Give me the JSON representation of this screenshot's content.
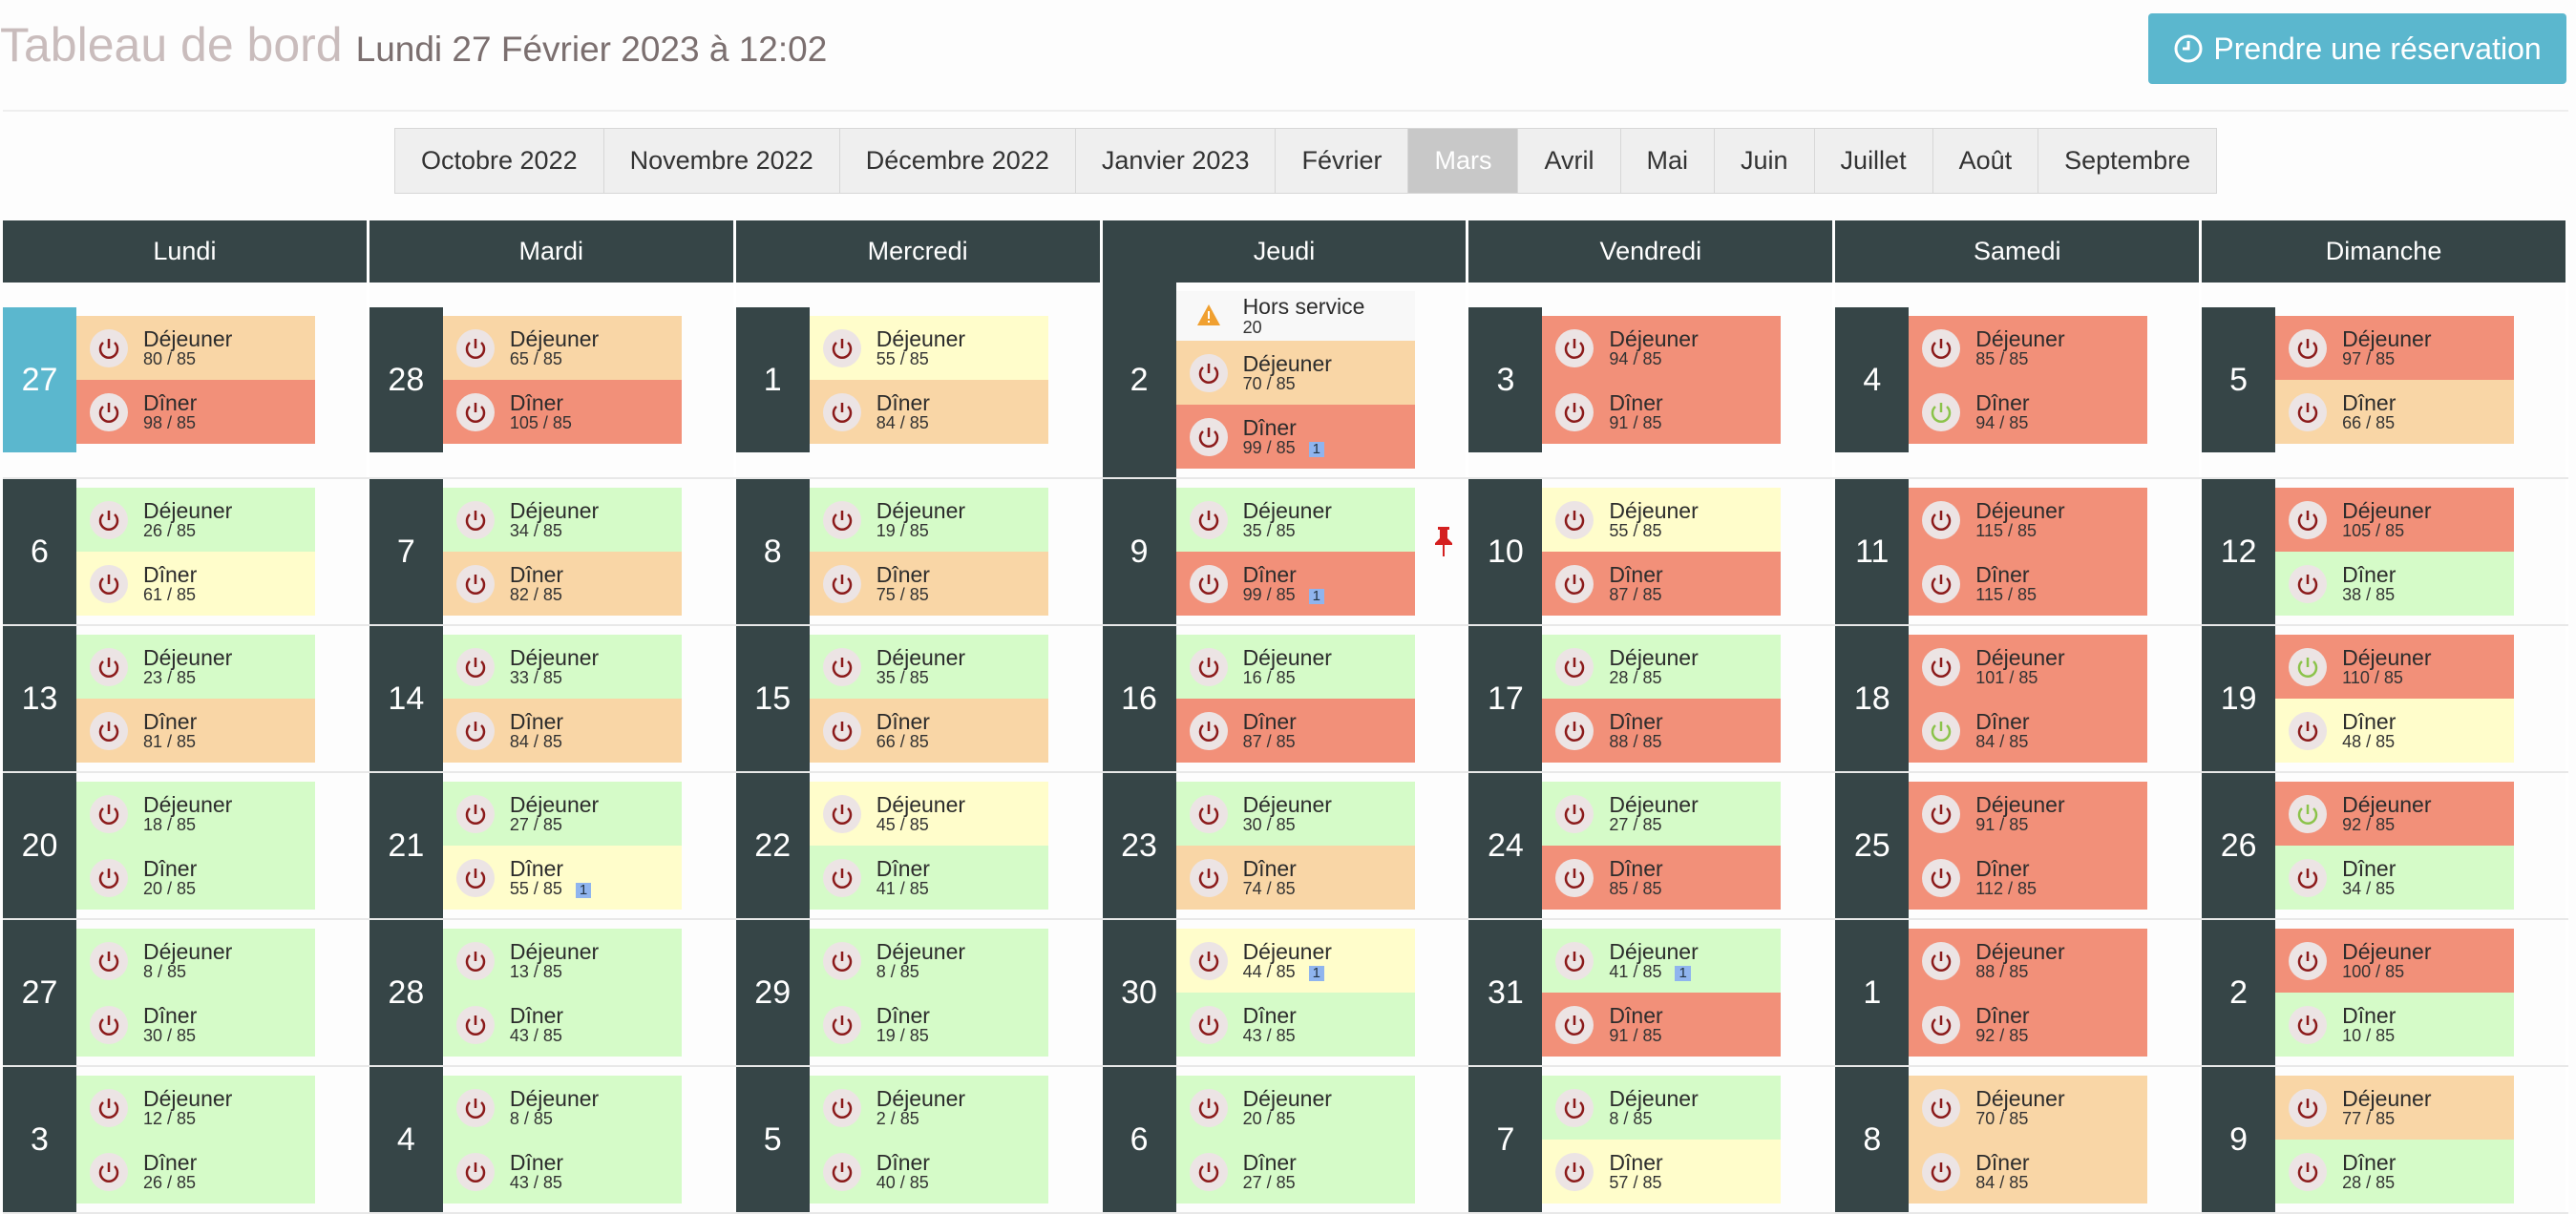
{
  "header": {
    "title": "Tableau de bord",
    "date": "Lundi 27 Février 2023 à 12:02",
    "button": "Prendre une réservation"
  },
  "months": [
    {
      "label": "Octobre 2022",
      "selected": false
    },
    {
      "label": "Novembre 2022",
      "selected": false
    },
    {
      "label": "Décembre 2022",
      "selected": false
    },
    {
      "label": "Janvier 2023",
      "selected": false
    },
    {
      "label": "Février",
      "selected": false
    },
    {
      "label": "Mars",
      "selected": true
    },
    {
      "label": "Avril",
      "selected": false
    },
    {
      "label": "Mai",
      "selected": false
    },
    {
      "label": "Juin",
      "selected": false
    },
    {
      "label": "Juillet",
      "selected": false
    },
    {
      "label": "Août",
      "selected": false
    },
    {
      "label": "Septembre",
      "selected": false
    }
  ],
  "weekdays": [
    "Lundi",
    "Mardi",
    "Mercredi",
    "Jeudi",
    "Vendredi",
    "Samedi",
    "Dimanche"
  ],
  "weeks": [
    [
      {
        "day": "27",
        "today": true,
        "meals": [
          {
            "name": "Déjeuner",
            "count": "80 / 85",
            "color": "orange"
          },
          {
            "name": "Dîner",
            "count": "98 / 85",
            "color": "red"
          }
        ]
      },
      {
        "day": "28",
        "meals": [
          {
            "name": "Déjeuner",
            "count": "65 / 85",
            "color": "orange"
          },
          {
            "name": "Dîner",
            "count": "105 / 85",
            "color": "red"
          }
        ]
      },
      {
        "day": "1",
        "meals": [
          {
            "name": "Déjeuner",
            "count": "55 / 85",
            "color": "yellow"
          },
          {
            "name": "Dîner",
            "count": "84 / 85",
            "color": "orange"
          }
        ]
      },
      {
        "day": "2",
        "meals": [
          {
            "name": "Hors service",
            "count": "20",
            "color": "white",
            "warning": true
          },
          {
            "name": "Déjeuner",
            "count": "70 / 85",
            "color": "orange"
          },
          {
            "name": "Dîner",
            "count": "99 / 85",
            "color": "red",
            "badge": "1"
          }
        ]
      },
      {
        "day": "3",
        "meals": [
          {
            "name": "Déjeuner",
            "count": "94 / 85",
            "color": "red"
          },
          {
            "name": "Dîner",
            "count": "91 / 85",
            "color": "red"
          }
        ]
      },
      {
        "day": "4",
        "meals": [
          {
            "name": "Déjeuner",
            "count": "85 / 85",
            "color": "red"
          },
          {
            "name": "Dîner",
            "count": "94 / 85",
            "color": "red",
            "icon": "green"
          }
        ]
      },
      {
        "day": "5",
        "meals": [
          {
            "name": "Déjeuner",
            "count": "97 / 85",
            "color": "red"
          },
          {
            "name": "Dîner",
            "count": "66 / 85",
            "color": "orange"
          }
        ]
      }
    ],
    [
      {
        "day": "6",
        "meals": [
          {
            "name": "Déjeuner",
            "count": "26 / 85",
            "color": "green"
          },
          {
            "name": "Dîner",
            "count": "61 / 85",
            "color": "yellow"
          }
        ]
      },
      {
        "day": "7",
        "meals": [
          {
            "name": "Déjeuner",
            "count": "34 / 85",
            "color": "green"
          },
          {
            "name": "Dîner",
            "count": "82 / 85",
            "color": "orange"
          }
        ]
      },
      {
        "day": "8",
        "meals": [
          {
            "name": "Déjeuner",
            "count": "19 / 85",
            "color": "green"
          },
          {
            "name": "Dîner",
            "count": "75 / 85",
            "color": "orange"
          }
        ]
      },
      {
        "day": "9",
        "pinned": true,
        "meals": [
          {
            "name": "Déjeuner",
            "count": "35 / 85",
            "color": "green"
          },
          {
            "name": "Dîner",
            "count": "99 / 85",
            "color": "red",
            "badge": "1"
          }
        ]
      },
      {
        "day": "10",
        "meals": [
          {
            "name": "Déjeuner",
            "count": "55 / 85",
            "color": "yellow"
          },
          {
            "name": "Dîner",
            "count": "87 / 85",
            "color": "red"
          }
        ]
      },
      {
        "day": "11",
        "meals": [
          {
            "name": "Déjeuner",
            "count": "115 / 85",
            "color": "red"
          },
          {
            "name": "Dîner",
            "count": "115 / 85",
            "color": "red"
          }
        ]
      },
      {
        "day": "12",
        "meals": [
          {
            "name": "Déjeuner",
            "count": "105 / 85",
            "color": "red"
          },
          {
            "name": "Dîner",
            "count": "38 / 85",
            "color": "green"
          }
        ]
      }
    ],
    [
      {
        "day": "13",
        "meals": [
          {
            "name": "Déjeuner",
            "count": "23 / 85",
            "color": "green"
          },
          {
            "name": "Dîner",
            "count": "81 / 85",
            "color": "orange"
          }
        ]
      },
      {
        "day": "14",
        "meals": [
          {
            "name": "Déjeuner",
            "count": "33 / 85",
            "color": "green"
          },
          {
            "name": "Dîner",
            "count": "84 / 85",
            "color": "orange"
          }
        ]
      },
      {
        "day": "15",
        "meals": [
          {
            "name": "Déjeuner",
            "count": "35 / 85",
            "color": "green"
          },
          {
            "name": "Dîner",
            "count": "66 / 85",
            "color": "orange"
          }
        ]
      },
      {
        "day": "16",
        "meals": [
          {
            "name": "Déjeuner",
            "count": "16 / 85",
            "color": "green"
          },
          {
            "name": "Dîner",
            "count": "87 / 85",
            "color": "red"
          }
        ]
      },
      {
        "day": "17",
        "meals": [
          {
            "name": "Déjeuner",
            "count": "28 / 85",
            "color": "green"
          },
          {
            "name": "Dîner",
            "count": "88 / 85",
            "color": "red"
          }
        ]
      },
      {
        "day": "18",
        "meals": [
          {
            "name": "Déjeuner",
            "count": "101 / 85",
            "color": "red"
          },
          {
            "name": "Dîner",
            "count": "84 / 85",
            "color": "red",
            "icon": "green"
          }
        ]
      },
      {
        "day": "19",
        "meals": [
          {
            "name": "Déjeuner",
            "count": "110 / 85",
            "color": "red",
            "icon": "green"
          },
          {
            "name": "Dîner",
            "count": "48 / 85",
            "color": "yellow"
          }
        ]
      }
    ],
    [
      {
        "day": "20",
        "meals": [
          {
            "name": "Déjeuner",
            "count": "18 / 85",
            "color": "green"
          },
          {
            "name": "Dîner",
            "count": "20 / 85",
            "color": "green"
          }
        ]
      },
      {
        "day": "21",
        "meals": [
          {
            "name": "Déjeuner",
            "count": "27 / 85",
            "color": "green"
          },
          {
            "name": "Dîner",
            "count": "55 / 85",
            "color": "yellow",
            "badge": "1"
          }
        ]
      },
      {
        "day": "22",
        "meals": [
          {
            "name": "Déjeuner",
            "count": "45 / 85",
            "color": "yellow"
          },
          {
            "name": "Dîner",
            "count": "41 / 85",
            "color": "green"
          }
        ]
      },
      {
        "day": "23",
        "meals": [
          {
            "name": "Déjeuner",
            "count": "30 / 85",
            "color": "green"
          },
          {
            "name": "Dîner",
            "count": "74 / 85",
            "color": "orange"
          }
        ]
      },
      {
        "day": "24",
        "meals": [
          {
            "name": "Déjeuner",
            "count": "27 / 85",
            "color": "green"
          },
          {
            "name": "Dîner",
            "count": "85 / 85",
            "color": "red"
          }
        ]
      },
      {
        "day": "25",
        "meals": [
          {
            "name": "Déjeuner",
            "count": "91 / 85",
            "color": "red"
          },
          {
            "name": "Dîner",
            "count": "112 / 85",
            "color": "red"
          }
        ]
      },
      {
        "day": "26",
        "meals": [
          {
            "name": "Déjeuner",
            "count": "92 / 85",
            "color": "red",
            "icon": "green"
          },
          {
            "name": "Dîner",
            "count": "34 / 85",
            "color": "green"
          }
        ]
      }
    ],
    [
      {
        "day": "27",
        "meals": [
          {
            "name": "Déjeuner",
            "count": "8 / 85",
            "color": "green"
          },
          {
            "name": "Dîner",
            "count": "30 / 85",
            "color": "green"
          }
        ]
      },
      {
        "day": "28",
        "meals": [
          {
            "name": "Déjeuner",
            "count": "13 / 85",
            "color": "green"
          },
          {
            "name": "Dîner",
            "count": "43 / 85",
            "color": "green"
          }
        ]
      },
      {
        "day": "29",
        "meals": [
          {
            "name": "Déjeuner",
            "count": "8 / 85",
            "color": "green"
          },
          {
            "name": "Dîner",
            "count": "19 / 85",
            "color": "green"
          }
        ]
      },
      {
        "day": "30",
        "meals": [
          {
            "name": "Déjeuner",
            "count": "44 / 85",
            "color": "yellow",
            "badge": "1"
          },
          {
            "name": "Dîner",
            "count": "43 / 85",
            "color": "green"
          }
        ]
      },
      {
        "day": "31",
        "meals": [
          {
            "name": "Déjeuner",
            "count": "41 / 85",
            "color": "green",
            "badge": "1"
          },
          {
            "name": "Dîner",
            "count": "91 / 85",
            "color": "red"
          }
        ]
      },
      {
        "day": "1",
        "meals": [
          {
            "name": "Déjeuner",
            "count": "88 / 85",
            "color": "red"
          },
          {
            "name": "Dîner",
            "count": "92 / 85",
            "color": "red"
          }
        ]
      },
      {
        "day": "2",
        "meals": [
          {
            "name": "Déjeuner",
            "count": "100 / 85",
            "color": "red"
          },
          {
            "name": "Dîner",
            "count": "10 / 85",
            "color": "green"
          }
        ]
      }
    ],
    [
      {
        "day": "3",
        "meals": [
          {
            "name": "Déjeuner",
            "count": "12 / 85",
            "color": "green"
          },
          {
            "name": "Dîner",
            "count": "26 / 85",
            "color": "green"
          }
        ]
      },
      {
        "day": "4",
        "meals": [
          {
            "name": "Déjeuner",
            "count": "8 / 85",
            "color": "green"
          },
          {
            "name": "Dîner",
            "count": "43 / 85",
            "color": "green"
          }
        ]
      },
      {
        "day": "5",
        "meals": [
          {
            "name": "Déjeuner",
            "count": "2 / 85",
            "color": "green"
          },
          {
            "name": "Dîner",
            "count": "40 / 85",
            "color": "green"
          }
        ]
      },
      {
        "day": "6",
        "meals": [
          {
            "name": "Déjeuner",
            "count": "20 / 85",
            "color": "green"
          },
          {
            "name": "Dîner",
            "count": "27 / 85",
            "color": "green"
          }
        ]
      },
      {
        "day": "7",
        "meals": [
          {
            "name": "Déjeuner",
            "count": "8 / 85",
            "color": "green"
          },
          {
            "name": "Dîner",
            "count": "57 / 85",
            "color": "yellow"
          }
        ]
      },
      {
        "day": "8",
        "meals": [
          {
            "name": "Déjeuner",
            "count": "70 / 85",
            "color": "orange"
          },
          {
            "name": "Dîner",
            "count": "84 / 85",
            "color": "orange"
          }
        ]
      },
      {
        "day": "9",
        "meals": [
          {
            "name": "Déjeuner",
            "count": "77 / 85",
            "color": "orange"
          },
          {
            "name": "Dîner",
            "count": "28 / 85",
            "color": "green"
          }
        ]
      }
    ]
  ]
}
